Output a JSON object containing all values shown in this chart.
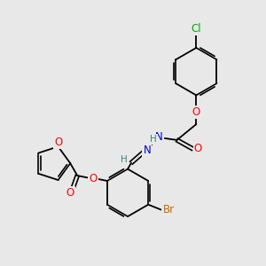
{
  "bg_color": "#e8e8e8",
  "bond_color": "#000000",
  "atom_colors": {
    "O": "#ff0000",
    "N": "#0000cd",
    "Br": "#cc6600",
    "Cl": "#00aa00",
    "H": "#408080",
    "C": "#000000"
  },
  "font_size_atom": 8.5,
  "title": ""
}
